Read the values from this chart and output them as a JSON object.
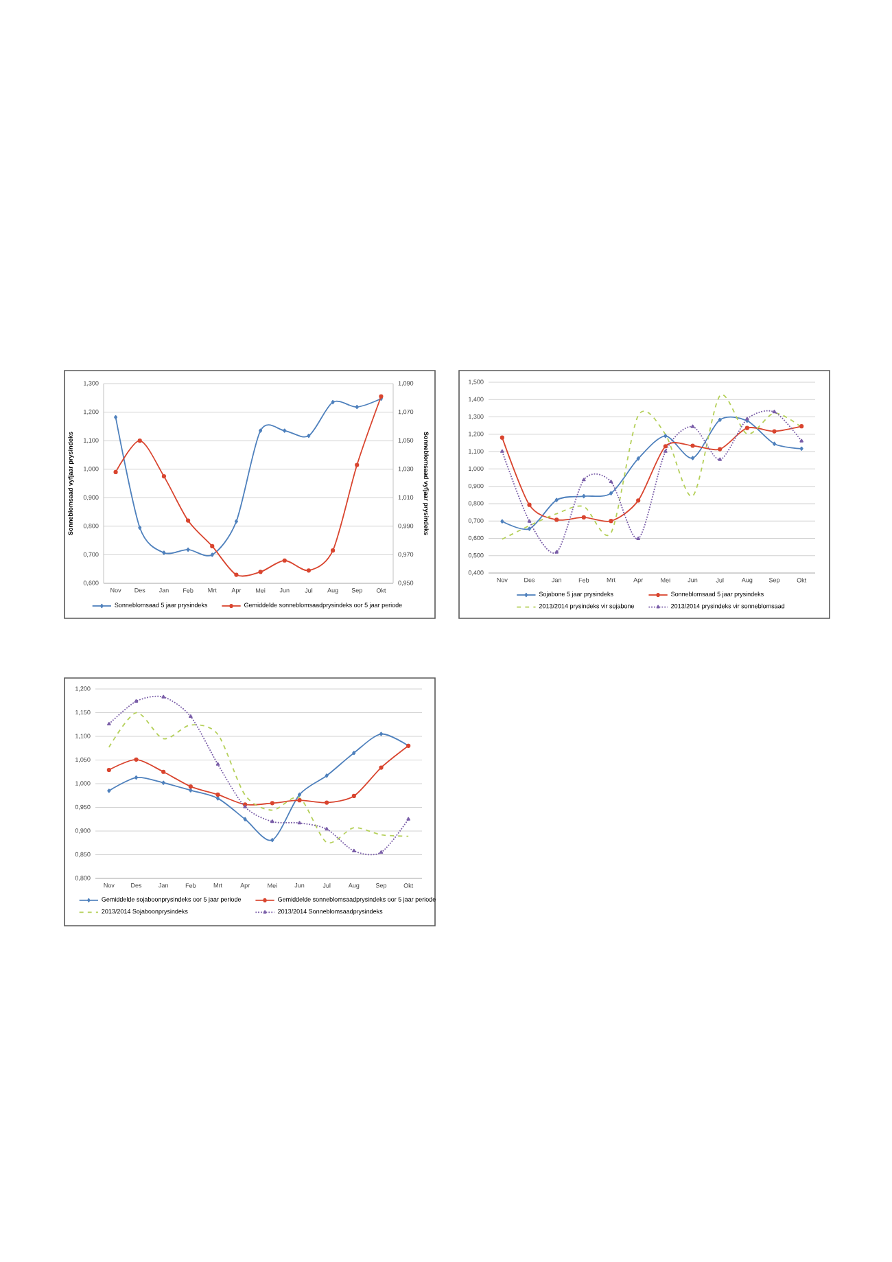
{
  "chart_data": [
    {
      "type": "line",
      "categories": [
        "Nov",
        "Des",
        "Jan",
        "Feb",
        "Mrt",
        "Apr",
        "Mei",
        "Jun",
        "Jul",
        "Aug",
        "Sep",
        "Okt"
      ],
      "ylabel": "Sonneblomsaad vyfjaar prysindeks",
      "y2label": "Sonneblomsaad vyfjaar prysindeks",
      "ylim": [
        0.6,
        1.3
      ],
      "yticks": [
        {
          "value": 0.6,
          "label": "0,600"
        },
        {
          "value": 0.7,
          "label": "0,700"
        },
        {
          "value": 0.8,
          "label": "0,800"
        },
        {
          "value": 0.9,
          "label": "0,900"
        },
        {
          "value": 1.0,
          "label": "1,000"
        },
        {
          "value": 1.1,
          "label": "1,100"
        },
        {
          "value": 1.2,
          "label": "1,200"
        },
        {
          "value": 1.3,
          "label": "1,300"
        }
      ],
      "y2lim": [
        0.95,
        1.09
      ],
      "y2ticks": [
        {
          "value": 0.95,
          "label": "0,950"
        },
        {
          "value": 0.97,
          "label": "0,970"
        },
        {
          "value": 0.99,
          "label": "0,990"
        },
        {
          "value": 1.01,
          "label": "1,010"
        },
        {
          "value": 1.03,
          "label": "1,030"
        },
        {
          "value": 1.05,
          "label": "1,050"
        },
        {
          "value": 1.07,
          "label": "1,070"
        },
        {
          "value": 1.09,
          "label": "1,090"
        }
      ],
      "grid": "y",
      "legend": "bottom",
      "series": [
        {
          "name": "Sonneblomsaad 5 jaar prysindeks",
          "color": "#4f81bd",
          "marker": "diamond",
          "line_style": "solid",
          "values": [
            1.182,
            0.795,
            0.707,
            0.718,
            0.7,
            0.817,
            1.135,
            1.135,
            1.117,
            1.235,
            1.218,
            1.247
          ]
        },
        {
          "name": "Gemiddelde sonneblomsaadprysindeks oor 5 jaar periode",
          "color": "#d9452f",
          "marker": "circle",
          "line_style": "solid",
          "axis": "y2",
          "values": [
            1.028,
            1.05,
            1.025,
            0.994,
            0.976,
            0.956,
            0.958,
            0.966,
            0.959,
            0.973,
            1.033,
            1.081
          ]
        }
      ]
    },
    {
      "type": "line",
      "categories": [
        "Nov",
        "Des",
        "Jan",
        "Feb",
        "Mrt",
        "Apr",
        "Mei",
        "Jun",
        "Jul",
        "Aug",
        "Sep",
        "Okt"
      ],
      "ylim": [
        0.4,
        1.5
      ],
      "yticks": [
        {
          "value": 0.4,
          "label": "0,400"
        },
        {
          "value": 0.5,
          "label": "0,500"
        },
        {
          "value": 0.6,
          "label": "0,600"
        },
        {
          "value": 0.7,
          "label": "0,700"
        },
        {
          "value": 0.8,
          "label": "0,800"
        },
        {
          "value": 0.9,
          "label": "0,900"
        },
        {
          "value": 1.0,
          "label": "1,000"
        },
        {
          "value": 1.1,
          "label": "1,100"
        },
        {
          "value": 1.2,
          "label": "1,200"
        },
        {
          "value": 1.3,
          "label": "1,300"
        },
        {
          "value": 1.4,
          "label": "1,400"
        },
        {
          "value": 1.5,
          "label": "1,500"
        }
      ],
      "grid": "y",
      "legend": "bottom",
      "series": [
        {
          "name": "Sojabone 5 jaar prysindeks",
          "color": "#4f81bd",
          "marker": "diamond",
          "line_style": "solid",
          "values": [
            0.698,
            0.655,
            0.821,
            0.843,
            0.86,
            1.06,
            1.19,
            1.063,
            1.283,
            1.278,
            1.145,
            1.117
          ]
        },
        {
          "name": "Sonneblomsaad 5 jaar prysindeks",
          "color": "#d9452f",
          "marker": "circle",
          "line_style": "solid",
          "values": [
            1.181,
            0.793,
            0.707,
            0.721,
            0.7,
            0.818,
            1.131,
            1.134,
            1.114,
            1.236,
            1.217,
            1.246
          ]
        },
        {
          "name": "2013/2014 prysindeks vir sojabone",
          "color": "#b5d05a",
          "marker": "none",
          "line_style": "dashed",
          "values": [
            0.595,
            0.673,
            0.742,
            0.783,
            0.632,
            1.308,
            1.199,
            0.844,
            1.422,
            1.202,
            1.322,
            1.24
          ]
        },
        {
          "name": "2013/2014 prysindeks vir sonneblomsaad",
          "color": "#7a5ea8",
          "marker": "triangle",
          "line_style": "dotted",
          "values": [
            1.101,
            0.698,
            0.52,
            0.937,
            0.926,
            0.598,
            1.101,
            1.244,
            1.054,
            1.288,
            1.329,
            1.161
          ]
        }
      ]
    },
    {
      "type": "line",
      "categories": [
        "Nov",
        "Des",
        "Jan",
        "Feb",
        "Mrt",
        "Apr",
        "Mei",
        "Jun",
        "Jul",
        "Aug",
        "Sep",
        "Okt"
      ],
      "ylim": [
        0.8,
        1.2
      ],
      "yticks": [
        {
          "value": 0.8,
          "label": "0,800"
        },
        {
          "value": 0.85,
          "label": "0,850"
        },
        {
          "value": 0.9,
          "label": "0,900"
        },
        {
          "value": 0.95,
          "label": "0,950"
        },
        {
          "value": 1.0,
          "label": "1,000"
        },
        {
          "value": 1.05,
          "label": "1,050"
        },
        {
          "value": 1.1,
          "label": "1,100"
        },
        {
          "value": 1.15,
          "label": "1,150"
        },
        {
          "value": 1.2,
          "label": "1,200"
        }
      ],
      "grid": "y",
      "legend": "bottom",
      "series": [
        {
          "name": "Gemiddelde sojaboonprysindeks oor 5 jaar periode",
          "color": "#4f81bd",
          "marker": "diamond",
          "line_style": "solid",
          "values": [
            0.985,
            1.013,
            1.002,
            0.986,
            0.969,
            0.925,
            0.881,
            0.977,
            1.017,
            1.065,
            1.105,
            1.08
          ]
        },
        {
          "name": "Gemiddelde sonneblomsaadprysindeks oor 5 jaar periode",
          "color": "#d9452f",
          "marker": "circle",
          "line_style": "solid",
          "values": [
            1.029,
            1.051,
            1.025,
            0.994,
            0.977,
            0.956,
            0.959,
            0.965,
            0.96,
            0.974,
            1.034,
            1.08
          ]
        },
        {
          "name": "2013/2014 Sojaboonprysindeks",
          "color": "#b5d05a",
          "marker": "none",
          "line_style": "dashed",
          "values": [
            1.077,
            1.15,
            1.095,
            1.124,
            1.104,
            0.976,
            0.944,
            0.97,
            0.876,
            0.907,
            0.892,
            0.889
          ]
        },
        {
          "name": "2013/2014 Sonneblomsaadprysindeks",
          "color": "#7a5ea8",
          "marker": "triangle",
          "line_style": "dotted",
          "values": [
            1.126,
            1.174,
            1.183,
            1.142,
            1.041,
            0.951,
            0.92,
            0.917,
            0.904,
            0.858,
            0.855,
            0.925
          ]
        }
      ]
    }
  ]
}
